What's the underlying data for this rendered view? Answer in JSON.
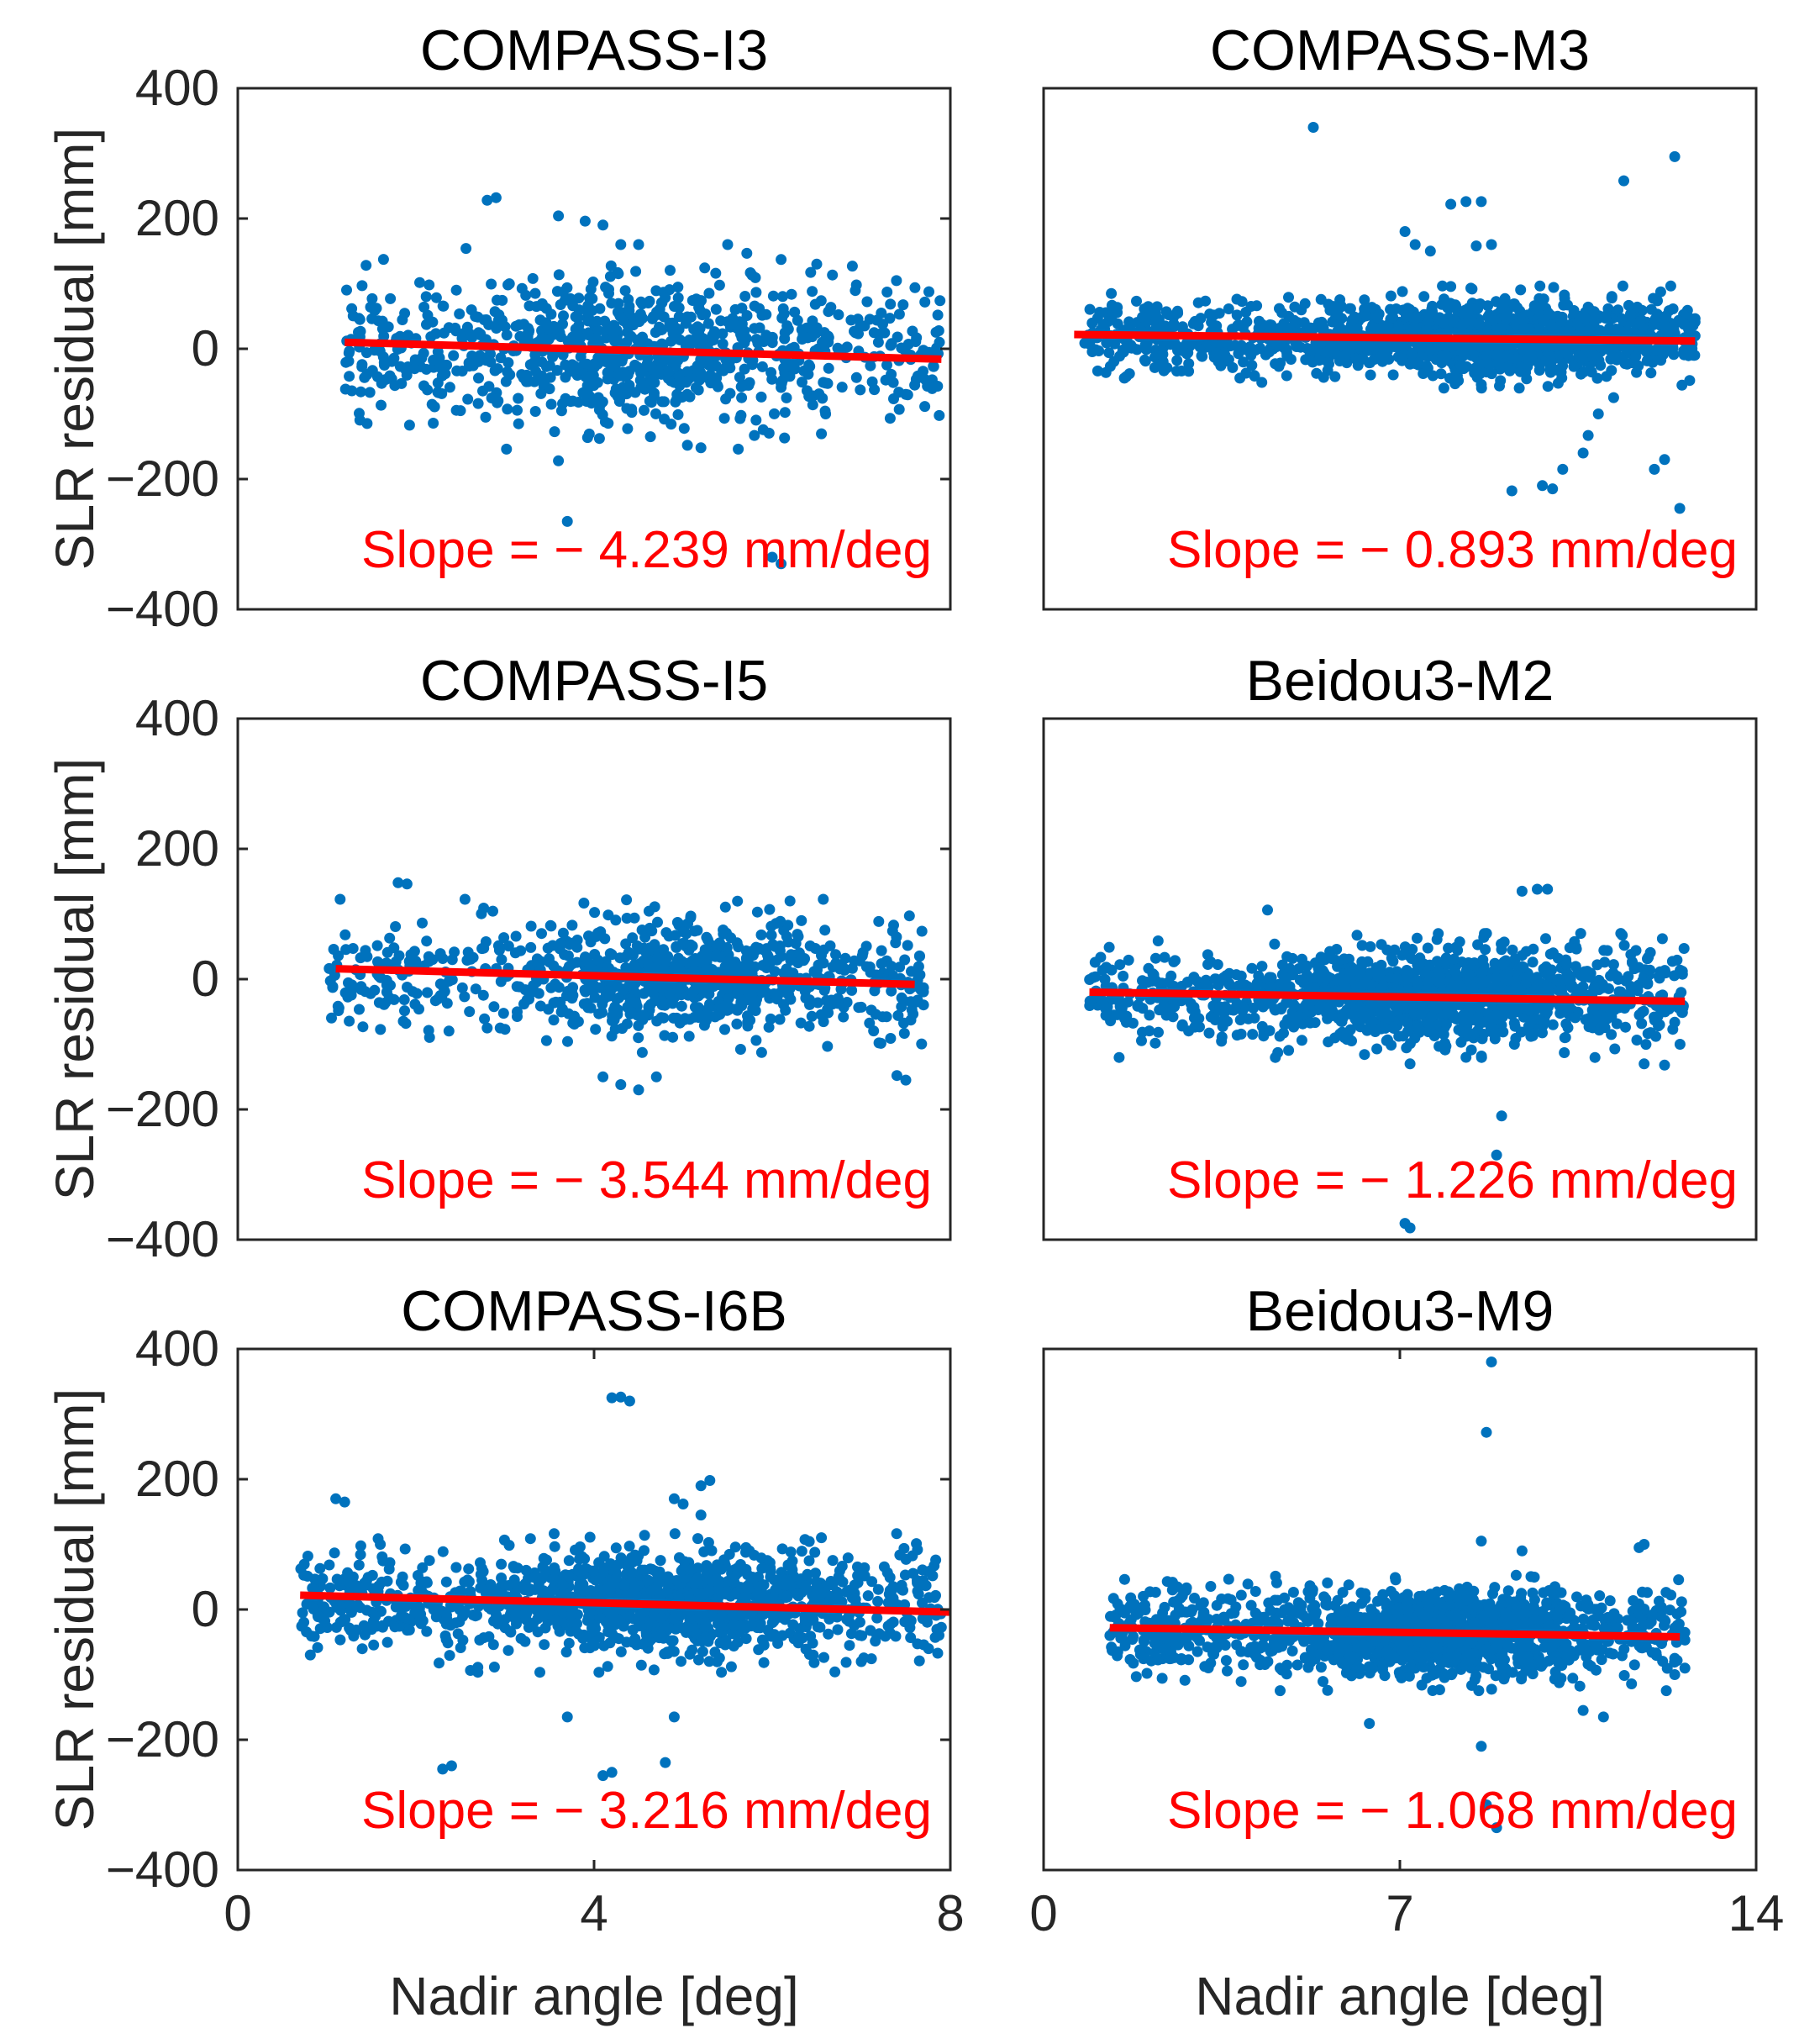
{
  "figure": {
    "ylabel": "SLR residual [mm]",
    "xlabel": "Nadir angle [deg]",
    "scatter_color": "#0072BD",
    "fit_color": "#FF0000",
    "text_color": "#262626"
  },
  "chart_data": [
    {
      "type": "scatter",
      "title": "COMPASS-I3",
      "xlabel": "",
      "ylabel": "SLR residual [mm]",
      "xlim": [
        0,
        8
      ],
      "ylim": [
        -400,
        400
      ],
      "xticks": [],
      "yticks": [
        -400,
        -200,
        0,
        200,
        400
      ],
      "point_cloud": {
        "x_range": [
          1.2,
          7.9
        ],
        "center": 0,
        "spread": 55,
        "center_x": 4.6,
        "x_concentration": 0.35,
        "count": 900
      },
      "fit_line": {
        "x": [
          1.2,
          7.9
        ],
        "y": [
          10,
          -16
        ]
      },
      "annotation": "Slope = − 4.239 mm/deg",
      "slope": -4.239,
      "outliers": [
        [
          2.8,
          228
        ],
        [
          2.9,
          232
        ],
        [
          3.6,
          204
        ],
        [
          3.9,
          196
        ],
        [
          4.1,
          190
        ],
        [
          4.3,
          160
        ],
        [
          4.5,
          160
        ],
        [
          5.5,
          160
        ],
        [
          6.1,
          137
        ],
        [
          6.5,
          130
        ],
        [
          6.9,
          127
        ],
        [
          3.6,
          -172
        ],
        [
          3.7,
          -265
        ],
        [
          5.2,
          -152
        ],
        [
          5.8,
          -133
        ],
        [
          6.0,
          -320
        ],
        [
          6.1,
          -330
        ],
        [
          2.5,
          -95
        ],
        [
          6.6,
          -100
        ],
        [
          7.5,
          -70
        ]
      ]
    },
    {
      "type": "scatter",
      "title": "COMPASS-M3",
      "xlabel": "",
      "ylabel": "",
      "xlim": [
        0,
        14
      ],
      "ylim": [
        -400,
        400
      ],
      "xticks": [],
      "yticks": [],
      "point_cloud": {
        "x_range": [
          0.8,
          12.8
        ],
        "center": 18,
        "spread": 28,
        "center_x": 9.0,
        "x_concentration": 0.45,
        "count": 1500
      },
      "fit_line": {
        "x": [
          0.6,
          12.8
        ],
        "y": [
          22,
          12
        ]
      },
      "annotation": "Slope = − 0.893 mm/deg",
      "slope": -0.893,
      "outliers": [
        [
          5.3,
          340
        ],
        [
          11.4,
          258
        ],
        [
          12.4,
          295
        ],
        [
          7.1,
          180
        ],
        [
          7.3,
          160
        ],
        [
          7.6,
          150
        ],
        [
          8.0,
          222
        ],
        [
          8.3,
          226
        ],
        [
          8.6,
          226
        ],
        [
          8.5,
          158
        ],
        [
          8.8,
          160
        ],
        [
          9.2,
          -218
        ],
        [
          9.8,
          -210
        ],
        [
          10.0,
          -215
        ],
        [
          10.2,
          -185
        ],
        [
          10.6,
          -160
        ],
        [
          10.7,
          -133
        ],
        [
          10.9,
          -100
        ],
        [
          12.0,
          -185
        ],
        [
          12.2,
          -170
        ],
        [
          12.5,
          -245
        ],
        [
          11.2,
          -75
        ]
      ]
    },
    {
      "type": "scatter",
      "title": "COMPASS-I5",
      "xlabel": "",
      "ylabel": "SLR residual [mm]",
      "xlim": [
        0,
        8
      ],
      "ylim": [
        -400,
        400
      ],
      "xticks": [],
      "yticks": [
        -400,
        -200,
        0,
        200,
        400
      ],
      "point_cloud": {
        "x_range": [
          1.0,
          7.7
        ],
        "center": 5,
        "spread": 42,
        "center_x": 5.0,
        "x_concentration": 0.45,
        "count": 900
      },
      "fit_line": {
        "x": [
          1.1,
          7.6
        ],
        "y": [
          16,
          -8
        ]
      },
      "annotation": "Slope = − 3.544 mm/deg",
      "slope": -3.544,
      "outliers": [
        [
          1.8,
          148
        ],
        [
          1.9,
          146
        ],
        [
          6.2,
          120
        ],
        [
          4.1,
          -150
        ],
        [
          4.3,
          -162
        ],
        [
          4.5,
          -170
        ],
        [
          4.7,
          -150
        ],
        [
          7.4,
          -148
        ],
        [
          7.5,
          -155
        ],
        [
          2.8,
          -75
        ],
        [
          3.0,
          -77
        ]
      ]
    },
    {
      "type": "scatter",
      "title": "Beidou3-M2",
      "xlabel": "",
      "ylabel": "",
      "xlim": [
        0,
        14
      ],
      "ylim": [
        -400,
        400
      ],
      "xticks": [],
      "yticks": [],
      "point_cloud": {
        "x_range": [
          0.9,
          12.6
        ],
        "center": -25,
        "spread": 34,
        "center_x": 8.0,
        "x_concentration": 0.5,
        "count": 1500
      },
      "fit_line": {
        "x": [
          0.9,
          12.6
        ],
        "y": [
          -20,
          -34
        ]
      },
      "annotation": "Slope = − 1.226 mm/deg",
      "slope": -1.226,
      "outliers": [
        [
          4.4,
          106
        ],
        [
          9.4,
          135
        ],
        [
          9.7,
          138
        ],
        [
          9.9,
          138
        ],
        [
          7.2,
          -130
        ],
        [
          8.3,
          -120
        ],
        [
          11.8,
          -130
        ],
        [
          12.2,
          -132
        ],
        [
          9.0,
          -210
        ],
        [
          8.9,
          -270
        ],
        [
          7.1,
          -375
        ],
        [
          7.2,
          -382
        ]
      ]
    },
    {
      "type": "scatter",
      "title": "COMPASS-I6B",
      "xlabel": "Nadir angle [deg]",
      "ylabel": "SLR residual [mm]",
      "xlim": [
        0,
        8
      ],
      "ylim": [
        -400,
        400
      ],
      "xticks": [
        0,
        4,
        8
      ],
      "yticks": [
        -400,
        -200,
        0,
        200,
        400
      ],
      "point_cloud": {
        "x_range": [
          0.7,
          7.9
        ],
        "center": 10,
        "spread": 38,
        "center_x": 5.0,
        "x_concentration": 0.45,
        "count": 1400
      },
      "fit_line": {
        "x": [
          0.7,
          8.0
        ],
        "y": [
          22,
          -4
        ]
      },
      "annotation": "Slope = − 3.216 mm/deg",
      "slope": -3.216,
      "outliers": [
        [
          4.2,
          325
        ],
        [
          4.3,
          326
        ],
        [
          4.4,
          320
        ],
        [
          1.1,
          170
        ],
        [
          1.2,
          165
        ],
        [
          5.2,
          190
        ],
        [
          5.3,
          198
        ],
        [
          4.9,
          170
        ],
        [
          5.0,
          162
        ],
        [
          5.2,
          145
        ],
        [
          1.6,
          100
        ],
        [
          4.1,
          -255
        ],
        [
          4.2,
          -250
        ],
        [
          3.7,
          -165
        ],
        [
          4.9,
          -165
        ],
        [
          4.8,
          -235
        ],
        [
          2.3,
          -245
        ],
        [
          2.4,
          -240
        ],
        [
          7.0,
          -80
        ]
      ]
    },
    {
      "type": "scatter",
      "title": "Beidou3-M9",
      "xlabel": "Nadir angle [deg]",
      "ylabel": "",
      "xlim": [
        0,
        14
      ],
      "ylim": [
        -400,
        400
      ],
      "xticks": [
        0,
        7,
        14
      ],
      "yticks": [],
      "point_cloud": {
        "x_range": [
          1.3,
          12.6
        ],
        "center": -35,
        "spread": 32,
        "center_x": 8.0,
        "x_concentration": 0.5,
        "count": 1500
      },
      "fit_line": {
        "x": [
          1.3,
          12.5
        ],
        "y": [
          -28,
          -42
        ]
      },
      "annotation": "Slope = − 1.068 mm/deg",
      "slope": -1.068,
      "outliers": [
        [
          8.8,
          380
        ],
        [
          8.7,
          272
        ],
        [
          8.6,
          105
        ],
        [
          9.4,
          90
        ],
        [
          11.7,
          95
        ],
        [
          11.8,
          100
        ],
        [
          6.4,
          -175
        ],
        [
          8.6,
          -210
        ],
        [
          10.6,
          -155
        ],
        [
          11.0,
          -165
        ],
        [
          12.4,
          -100
        ],
        [
          12.6,
          -90
        ],
        [
          8.7,
          -300
        ],
        [
          8.9,
          -335
        ],
        [
          12.4,
          -75
        ],
        [
          1.4,
          -30
        ]
      ]
    }
  ]
}
